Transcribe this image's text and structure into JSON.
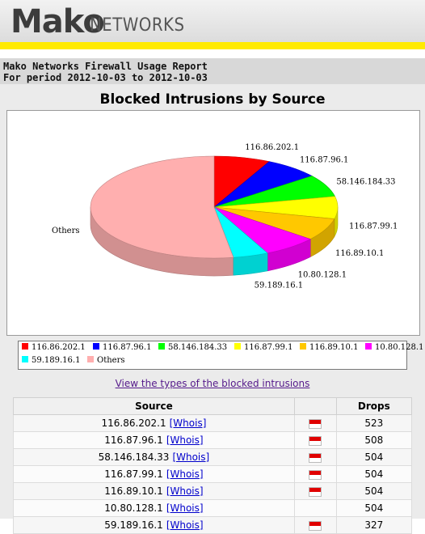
{
  "brand": {
    "name": "Mako",
    "sub": "NETWORKS"
  },
  "report": {
    "title": "Mako Networks Firewall Usage Report",
    "period": "For period 2012-10-03 to 2012-10-03"
  },
  "colors": {
    "header_yellow": "#ffea00",
    "link": "#551a8b",
    "whois": "#0000cc",
    "flag_red": "#e00000"
  },
  "chart_data": {
    "type": "pie",
    "title": "Blocked Intrusions by Source",
    "three_d": true,
    "legend_position": "bottom",
    "series": [
      {
        "name": "116.86.202.1",
        "value": 523,
        "color": "#ff0000"
      },
      {
        "name": "116.87.96.1",
        "value": 508,
        "color": "#0000ff"
      },
      {
        "name": "58.146.184.33",
        "value": 504,
        "color": "#00ff00"
      },
      {
        "name": "116.87.99.1",
        "value": 504,
        "color": "#ffff00"
      },
      {
        "name": "116.89.10.1",
        "value": 504,
        "color": "#ffc800"
      },
      {
        "name": "10.80.128.1",
        "value": 504,
        "color": "#ff00ff"
      },
      {
        "name": "59.189.16.1",
        "value": 327,
        "color": "#00ffff"
      },
      {
        "name": "Others",
        "value": 3730,
        "color": "#ffafaf"
      }
    ]
  },
  "link_text": "View the types of the blocked intrusions",
  "table": {
    "headers": {
      "source": "Source",
      "drops": "Drops"
    },
    "whois_label": "[Whois]",
    "rows": [
      {
        "source": "116.86.202.1",
        "flag": true,
        "drops": "523"
      },
      {
        "source": "116.87.96.1",
        "flag": true,
        "drops": "508"
      },
      {
        "source": "58.146.184.33",
        "flag": true,
        "drops": "504"
      },
      {
        "source": "116.87.99.1",
        "flag": true,
        "drops": "504"
      },
      {
        "source": "116.89.10.1",
        "flag": true,
        "drops": "504"
      },
      {
        "source": "10.80.128.1",
        "flag": false,
        "drops": "504"
      },
      {
        "source": "59.189.16.1",
        "flag": true,
        "drops": "327"
      }
    ]
  }
}
